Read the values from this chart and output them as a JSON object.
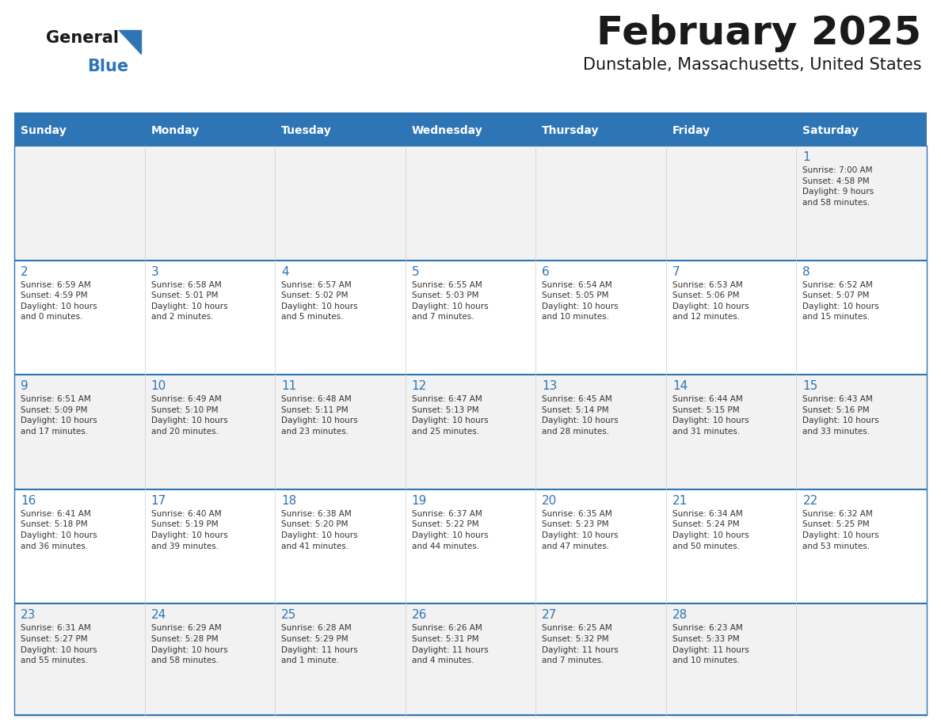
{
  "title": "February 2025",
  "subtitle": "Dunstable, Massachusetts, United States",
  "days_of_week": [
    "Sunday",
    "Monday",
    "Tuesday",
    "Wednesday",
    "Thursday",
    "Friday",
    "Saturday"
  ],
  "header_bg": "#2E75B6",
  "header_text": "#FFFFFF",
  "cell_bg_even": "#F2F2F2",
  "cell_bg_odd": "#FFFFFF",
  "border_color": "#2E75B6",
  "day_num_color": "#2E75B6",
  "text_color": "#333333",
  "logo_general_color": "#1a1a1a",
  "logo_blue_color": "#2E75B6",
  "fig_width": 11.88,
  "fig_height": 9.18,
  "weeks": [
    [
      {
        "day": null,
        "info": null
      },
      {
        "day": null,
        "info": null
      },
      {
        "day": null,
        "info": null
      },
      {
        "day": null,
        "info": null
      },
      {
        "day": null,
        "info": null
      },
      {
        "day": null,
        "info": null
      },
      {
        "day": 1,
        "info": "Sunrise: 7:00 AM\nSunset: 4:58 PM\nDaylight: 9 hours\nand 58 minutes."
      }
    ],
    [
      {
        "day": 2,
        "info": "Sunrise: 6:59 AM\nSunset: 4:59 PM\nDaylight: 10 hours\nand 0 minutes."
      },
      {
        "day": 3,
        "info": "Sunrise: 6:58 AM\nSunset: 5:01 PM\nDaylight: 10 hours\nand 2 minutes."
      },
      {
        "day": 4,
        "info": "Sunrise: 6:57 AM\nSunset: 5:02 PM\nDaylight: 10 hours\nand 5 minutes."
      },
      {
        "day": 5,
        "info": "Sunrise: 6:55 AM\nSunset: 5:03 PM\nDaylight: 10 hours\nand 7 minutes."
      },
      {
        "day": 6,
        "info": "Sunrise: 6:54 AM\nSunset: 5:05 PM\nDaylight: 10 hours\nand 10 minutes."
      },
      {
        "day": 7,
        "info": "Sunrise: 6:53 AM\nSunset: 5:06 PM\nDaylight: 10 hours\nand 12 minutes."
      },
      {
        "day": 8,
        "info": "Sunrise: 6:52 AM\nSunset: 5:07 PM\nDaylight: 10 hours\nand 15 minutes."
      }
    ],
    [
      {
        "day": 9,
        "info": "Sunrise: 6:51 AM\nSunset: 5:09 PM\nDaylight: 10 hours\nand 17 minutes."
      },
      {
        "day": 10,
        "info": "Sunrise: 6:49 AM\nSunset: 5:10 PM\nDaylight: 10 hours\nand 20 minutes."
      },
      {
        "day": 11,
        "info": "Sunrise: 6:48 AM\nSunset: 5:11 PM\nDaylight: 10 hours\nand 23 minutes."
      },
      {
        "day": 12,
        "info": "Sunrise: 6:47 AM\nSunset: 5:13 PM\nDaylight: 10 hours\nand 25 minutes."
      },
      {
        "day": 13,
        "info": "Sunrise: 6:45 AM\nSunset: 5:14 PM\nDaylight: 10 hours\nand 28 minutes."
      },
      {
        "day": 14,
        "info": "Sunrise: 6:44 AM\nSunset: 5:15 PM\nDaylight: 10 hours\nand 31 minutes."
      },
      {
        "day": 15,
        "info": "Sunrise: 6:43 AM\nSunset: 5:16 PM\nDaylight: 10 hours\nand 33 minutes."
      }
    ],
    [
      {
        "day": 16,
        "info": "Sunrise: 6:41 AM\nSunset: 5:18 PM\nDaylight: 10 hours\nand 36 minutes."
      },
      {
        "day": 17,
        "info": "Sunrise: 6:40 AM\nSunset: 5:19 PM\nDaylight: 10 hours\nand 39 minutes."
      },
      {
        "day": 18,
        "info": "Sunrise: 6:38 AM\nSunset: 5:20 PM\nDaylight: 10 hours\nand 41 minutes."
      },
      {
        "day": 19,
        "info": "Sunrise: 6:37 AM\nSunset: 5:22 PM\nDaylight: 10 hours\nand 44 minutes."
      },
      {
        "day": 20,
        "info": "Sunrise: 6:35 AM\nSunset: 5:23 PM\nDaylight: 10 hours\nand 47 minutes."
      },
      {
        "day": 21,
        "info": "Sunrise: 6:34 AM\nSunset: 5:24 PM\nDaylight: 10 hours\nand 50 minutes."
      },
      {
        "day": 22,
        "info": "Sunrise: 6:32 AM\nSunset: 5:25 PM\nDaylight: 10 hours\nand 53 minutes."
      }
    ],
    [
      {
        "day": 23,
        "info": "Sunrise: 6:31 AM\nSunset: 5:27 PM\nDaylight: 10 hours\nand 55 minutes."
      },
      {
        "day": 24,
        "info": "Sunrise: 6:29 AM\nSunset: 5:28 PM\nDaylight: 10 hours\nand 58 minutes."
      },
      {
        "day": 25,
        "info": "Sunrise: 6:28 AM\nSunset: 5:29 PM\nDaylight: 11 hours\nand 1 minute."
      },
      {
        "day": 26,
        "info": "Sunrise: 6:26 AM\nSunset: 5:31 PM\nDaylight: 11 hours\nand 4 minutes."
      },
      {
        "day": 27,
        "info": "Sunrise: 6:25 AM\nSunset: 5:32 PM\nDaylight: 11 hours\nand 7 minutes."
      },
      {
        "day": 28,
        "info": "Sunrise: 6:23 AM\nSunset: 5:33 PM\nDaylight: 11 hours\nand 10 minutes."
      },
      {
        "day": null,
        "info": null
      }
    ]
  ]
}
